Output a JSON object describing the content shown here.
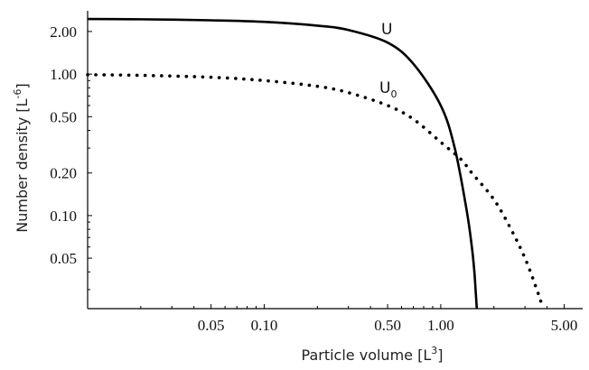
{
  "chart_data": {
    "type": "line",
    "xlabel_main": "Particle volume [L",
    "xlabel_sup": "3",
    "xlabel_end": "]",
    "ylabel_main": "Number density [L",
    "ylabel_sup": "-6",
    "ylabel_end": "]",
    "x_scale": "log",
    "y_scale": "log",
    "xlim": [
      0.01,
      6.0
    ],
    "ylim": [
      0.022,
      2.8
    ],
    "x_ticks": [
      {
        "value": 0.05,
        "label": "0.05"
      },
      {
        "value": 0.1,
        "label": "0.10"
      },
      {
        "value": 0.5,
        "label": "0.50"
      },
      {
        "value": 1.0,
        "label": "1.00"
      },
      {
        "value": 5.0,
        "label": "5.00"
      }
    ],
    "y_ticks": [
      {
        "value": 0.05,
        "label": "0.05"
      },
      {
        "value": 0.1,
        "label": "0.10"
      },
      {
        "value": 0.2,
        "label": "0.20"
      },
      {
        "value": 0.5,
        "label": "0.50"
      },
      {
        "value": 1.0,
        "label": "1.00"
      },
      {
        "value": 2.0,
        "label": "2.00"
      }
    ],
    "grid": false,
    "series": [
      {
        "name": "U",
        "subscript": "",
        "style": "solid",
        "color": "#000000",
        "x": [
          0.01,
          0.02,
          0.05,
          0.1,
          0.2,
          0.3,
          0.5,
          0.7,
          1.0,
          1.2,
          1.4,
          1.5,
          1.55,
          1.58,
          1.6
        ],
        "y": [
          2.45,
          2.44,
          2.4,
          2.34,
          2.2,
          2.05,
          1.67,
          1.18,
          0.6,
          0.3,
          0.11,
          0.06,
          0.04,
          0.028,
          0.022
        ]
      },
      {
        "name": "U",
        "subscript": "0",
        "style": "dotted",
        "color": "#000000",
        "x": [
          0.01,
          0.02,
          0.05,
          0.1,
          0.2,
          0.3,
          0.5,
          0.7,
          1.0,
          1.3,
          1.5,
          2.0,
          2.5,
          3.0,
          3.5,
          3.8
        ],
        "y": [
          0.99,
          0.98,
          0.95,
          0.9,
          0.82,
          0.74,
          0.6,
          0.48,
          0.33,
          0.25,
          0.2,
          0.13,
          0.08,
          0.05,
          0.03,
          0.022
        ]
      }
    ]
  }
}
